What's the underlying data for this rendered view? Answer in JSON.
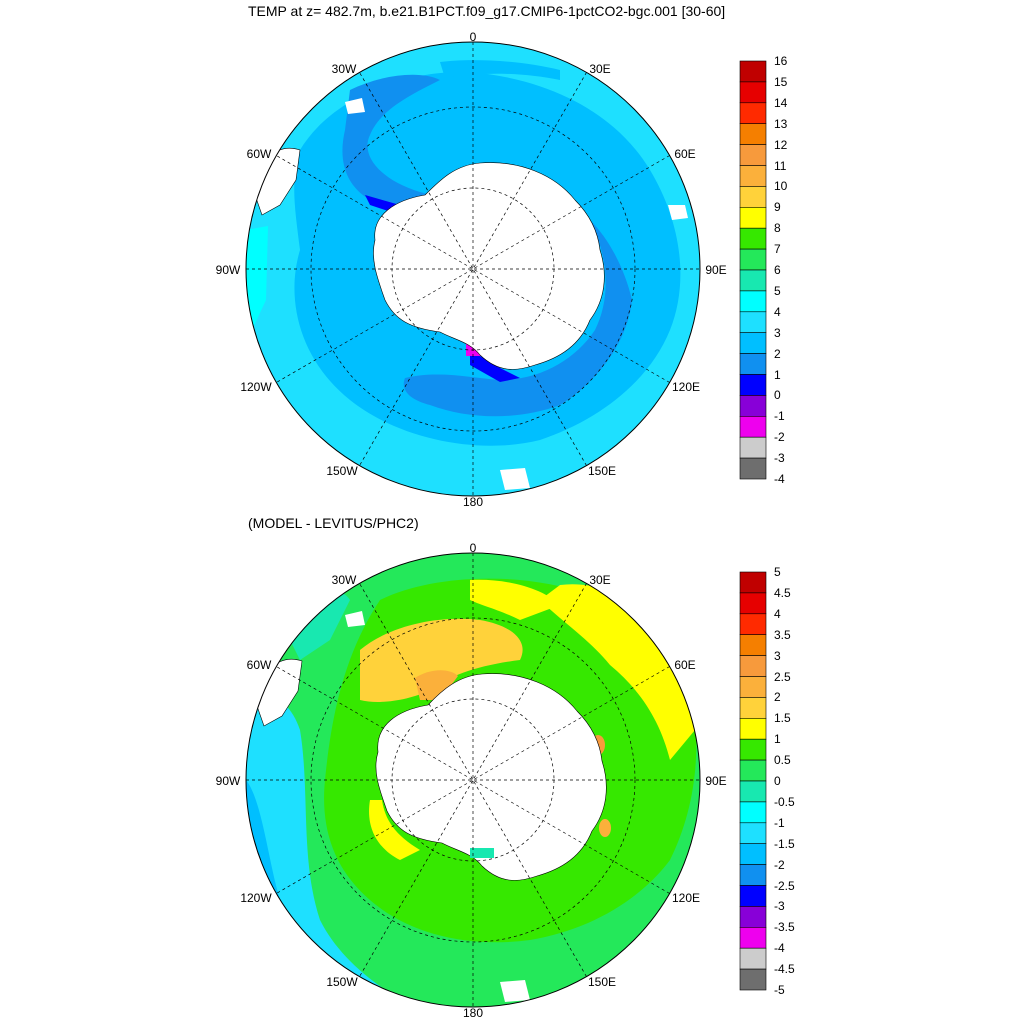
{
  "titles": {
    "main": "TEMP at z= 482.7m, b.e21.B1PCT.f09_g17.CMIP6-1pctCO2-bgc.001 [30-60]",
    "difference": "(MODEL - LEVITUS/PHC2)"
  },
  "longitude_labels": [
    "0",
    "30E",
    "60E",
    "90E",
    "120E",
    "150E",
    "180",
    "150W",
    "120W",
    "90W",
    "60W",
    "30W"
  ],
  "maps": [
    {
      "name": "temperature",
      "units_text": "",
      "colorbar_labels": [
        "16",
        "15",
        "14",
        "13",
        "12",
        "11",
        "10",
        "9",
        "8",
        "7",
        "6",
        "5",
        "4",
        "3",
        "2",
        "1",
        "0",
        "-1",
        "-2",
        "-3",
        "-4"
      ],
      "colorbar_colors": [
        "#c00000",
        "#e60000",
        "#ff2a00",
        "#f57f00",
        "#f79a3c",
        "#fbb03b",
        "#ffd23a",
        "#ffff00",
        "#36e800",
        "#24e85a",
        "#18e8b0",
        "#00ffff",
        "#1ee0ff",
        "#00bfff",
        "#1090f0",
        "#0000ff",
        "#8800d8",
        "#ee00ee",
        "#cccccc",
        "#6e6e6e"
      ]
    },
    {
      "name": "difference",
      "colorbar_labels": [
        "5",
        "4.5",
        "4",
        "3.5",
        "3",
        "2.5",
        "2",
        "1.5",
        "1",
        "0.5",
        "0",
        "-0.5",
        "-1",
        "-1.5",
        "-2",
        "-2.5",
        "-3",
        "-3.5",
        "-4",
        "-4.5",
        "-5"
      ],
      "colorbar_colors": [
        "#c00000",
        "#e60000",
        "#ff2a00",
        "#f57f00",
        "#f79a3c",
        "#fbb03b",
        "#ffd23a",
        "#ffff00",
        "#36e800",
        "#24e85a",
        "#18e8b0",
        "#00ffff",
        "#1ee0ff",
        "#00bfff",
        "#1090f0",
        "#0000ff",
        "#8800d8",
        "#ee00ee",
        "#cccccc",
        "#6e6e6e"
      ]
    }
  ]
}
